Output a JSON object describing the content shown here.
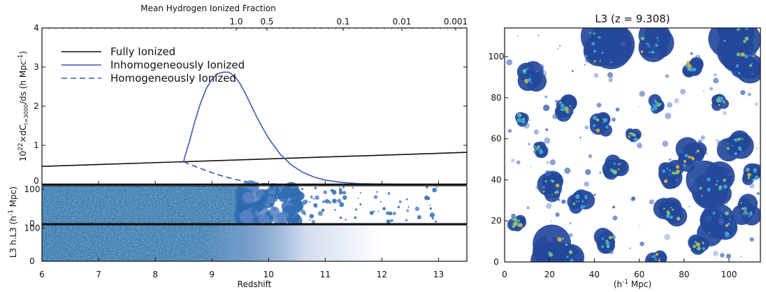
{
  "chart_data": [
    {
      "type": "line",
      "top_axis_label": "Mean Hydrogen Ionized Fraction",
      "top_ticks": [
        "1.0",
        "0.5",
        "0.1",
        "0.01",
        "0.001"
      ],
      "ylabel_parts": {
        "a": "10",
        "b": "22",
        "c": "×dC",
        "d": "l=3000",
        "e": "/ds (h Mpc",
        "f": "-1",
        "g": ")"
      },
      "xlabel": "Redshift",
      "xlim": [
        6,
        13.5
      ],
      "ylim": [
        0,
        4
      ],
      "xticks": [
        6,
        7,
        8,
        9,
        10,
        11,
        12,
        13
      ],
      "yticks": [
        0,
        1,
        2,
        3,
        4
      ],
      "legend_position": "top-left",
      "series": [
        {
          "name": "Fully Ionized",
          "style": "solid",
          "color": "#111111",
          "x": [
            6,
            13.5
          ],
          "y": [
            0.46,
            0.82
          ]
        },
        {
          "name": "Inhomogeneously Ionized",
          "style": "solid",
          "color": "#3a58b5",
          "x": [
            8.5,
            8.52,
            8.6,
            8.7,
            8.8,
            8.9,
            9.0,
            9.1,
            9.2,
            9.3,
            9.4,
            9.5,
            9.6,
            9.7,
            9.8,
            9.9,
            10.0,
            10.2,
            10.4,
            10.6,
            10.8,
            11.0,
            11.3,
            11.6,
            12.0,
            12.5
          ],
          "y": [
            0.58,
            0.7,
            1.08,
            1.62,
            2.08,
            2.45,
            2.69,
            2.83,
            2.87,
            2.87,
            2.77,
            2.57,
            2.3,
            2.0,
            1.7,
            1.43,
            1.18,
            0.78,
            0.5,
            0.31,
            0.19,
            0.11,
            0.05,
            0.02,
            0.01,
            0.0
          ]
        },
        {
          "name": "Homogeneously Ionized",
          "style": "dashed",
          "color": "#3a58b5",
          "x": [
            8.5,
            8.7,
            8.9,
            9.1,
            9.3,
            9.5,
            9.7,
            9.9,
            10.1,
            10.3
          ],
          "y": [
            0.58,
            0.46,
            0.35,
            0.25,
            0.17,
            0.1,
            0.05,
            0.02,
            0.01,
            0.0
          ]
        }
      ]
    },
    {
      "type": "heatmap",
      "title": "L3 h.L3 (h",
      "ylabel_suffix": "-1",
      "ylabel_end": " Mpc)",
      "panels": [
        {
          "name": "L3 h",
          "ylim": [
            0,
            110
          ],
          "yticks": [
            0,
            100
          ],
          "ionization_front_redshift": 9.0
        },
        {
          "name": "L3",
          "ylim": [
            0,
            110
          ],
          "yticks": [
            0,
            100
          ],
          "ionization_front_redshift": 9.0
        }
      ]
    },
    {
      "type": "heatmap",
      "title": "L3 (z = 9.308)",
      "xlabel_a": "(h",
      "xlabel_b": "-1",
      "xlabel_c": " Mpc)",
      "xlim": [
        0,
        114
      ],
      "ylim": [
        0,
        114
      ],
      "xticks": [
        0,
        20,
        40,
        60,
        80,
        100
      ],
      "yticks": [
        0,
        20,
        40,
        60,
        80,
        100
      ]
    }
  ]
}
